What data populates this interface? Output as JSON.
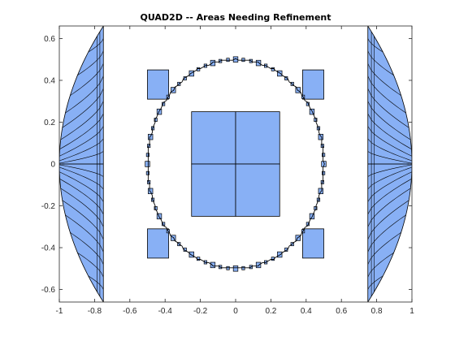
{
  "chart_data": {
    "type": "patch",
    "title": "QUAD2D -- Areas Needing Refinement",
    "xlabel": "",
    "ylabel": "",
    "xlim": [
      -1,
      1
    ],
    "ylim": [
      -0.66,
      0.66
    ],
    "xticks": [
      -1,
      -0.8,
      -0.6,
      -0.4,
      -0.2,
      0,
      0.2,
      0.4,
      0.6,
      0.8,
      1
    ],
    "xtick_labels": [
      "-1",
      "-0.8",
      "-0.6",
      "-0.4",
      "-0.2",
      "0",
      "0.2",
      "0.4",
      "0.6",
      "0.8",
      "1"
    ],
    "yticks": [
      -0.6,
      -0.4,
      -0.2,
      0,
      0.2,
      0.4,
      0.6
    ],
    "ytick_labels": [
      "-0.6",
      "-0.4",
      "-0.2",
      "0",
      "0.2",
      "0.4",
      "0.6"
    ],
    "grid": false,
    "legend": "none",
    "fill_color": "#88b0f5",
    "edge_color": "#000000",
    "regions": {
      "left_lens": {
        "x_edge": -0.75,
        "x_tip": -1,
        "y_extent": 0.66
      },
      "right_lens": {
        "x_edge": 0.75,
        "x_tip": 1,
        "y_extent": 0.66
      },
      "center_squares": [
        {
          "x0": -0.25,
          "x1": 0,
          "y0": 0,
          "y1": 0.25
        },
        {
          "x0": 0,
          "x1": 0.25,
          "y0": 0,
          "y1": 0.25
        },
        {
          "x0": -0.25,
          "x1": 0,
          "y0": -0.25,
          "y1": 0
        },
        {
          "x0": 0,
          "x1": 0.25,
          "y0": -0.25,
          "y1": 0
        }
      ],
      "corner_patches": [
        {
          "x0": -0.5,
          "x1": -0.38,
          "y0": 0.31,
          "y1": 0.45
        },
        {
          "x0": 0.38,
          "x1": 0.5,
          "y0": 0.31,
          "y1": 0.45
        },
        {
          "x0": -0.5,
          "x1": -0.38,
          "y0": -0.45,
          "y1": -0.31
        },
        {
          "x0": 0.38,
          "x1": 0.5,
          "y0": -0.45,
          "y1": -0.31
        }
      ],
      "circle": {
        "cx": 0,
        "cy": 0,
        "r": 0.5
      }
    }
  }
}
